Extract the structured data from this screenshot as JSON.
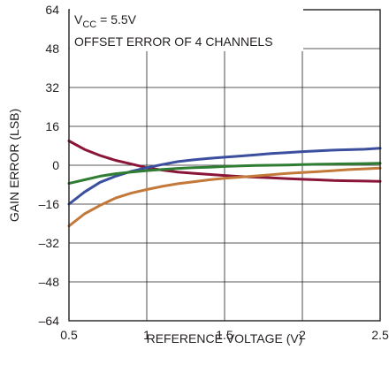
{
  "chart_data": {
    "type": "line",
    "xlabel": "REFERENCE VOLTAGE (V)",
    "ylabel": "GAIN ERROR (LSB)",
    "xlim": [
      0.5,
      2.5
    ],
    "ylim": [
      -64,
      64
    ],
    "x_ticks": [
      0.5,
      1,
      1.5,
      2,
      2.5
    ],
    "x_tick_labels": [
      "0.5",
      "1",
      "1.5",
      "2",
      "2.5"
    ],
    "y_ticks": [
      64,
      48,
      32,
      16,
      0,
      -16,
      -32,
      -48,
      -64
    ],
    "y_tick_labels": [
      "64",
      "48",
      "32",
      "16",
      "0",
      "–16",
      "–32",
      "–48",
      "–64"
    ],
    "grid": true,
    "annotation": {
      "vcc_prefix": "V",
      "vcc_sub": "CC",
      "vcc_value": " = 5.5V",
      "line2": "OFFSET ERROR OF 4 CHANNELS"
    },
    "x": [
      0.5,
      0.6,
      0.7,
      0.8,
      0.9,
      1.0,
      1.1,
      1.2,
      1.3,
      1.4,
      1.5,
      1.6,
      1.7,
      1.8,
      1.9,
      2.0,
      2.1,
      2.2,
      2.3,
      2.4,
      2.5
    ],
    "series": [
      {
        "color": "#8b1538",
        "values": [
          10,
          6.5,
          4,
          2,
          0.5,
          -1,
          -2,
          -2.8,
          -3.3,
          -3.8,
          -4.2,
          -4.6,
          -4.9,
          -5.2,
          -5.5,
          -5.8,
          -6,
          -6.3,
          -6.4,
          -6.5,
          -6.6
        ]
      },
      {
        "color": "#3b4f9e",
        "values": [
          -16,
          -11,
          -7,
          -4.5,
          -2.5,
          -1,
          0.3,
          1.5,
          2.2,
          2.8,
          3.3,
          3.8,
          4.3,
          4.8,
          5.2,
          5.6,
          5.9,
          6.2,
          6.4,
          6.6,
          7
        ]
      },
      {
        "color": "#2e7d32",
        "values": [
          -7.5,
          -6,
          -4.5,
          -3.5,
          -2.8,
          -2.2,
          -1.7,
          -1.3,
          -1,
          -0.8,
          -0.5,
          -0.3,
          -0.1,
          0,
          0.1,
          0.3,
          0.4,
          0.5,
          0.6,
          0.7,
          0.8
        ]
      },
      {
        "color": "#c2793a",
        "values": [
          -25,
          -20,
          -16.5,
          -13.5,
          -11.5,
          -10,
          -8.7,
          -7.6,
          -6.8,
          -6,
          -5.4,
          -4.9,
          -4.4,
          -3.9,
          -3.4,
          -3,
          -2.6,
          -2.2,
          -1.8,
          -1.5,
          -1.2
        ]
      }
    ]
  }
}
